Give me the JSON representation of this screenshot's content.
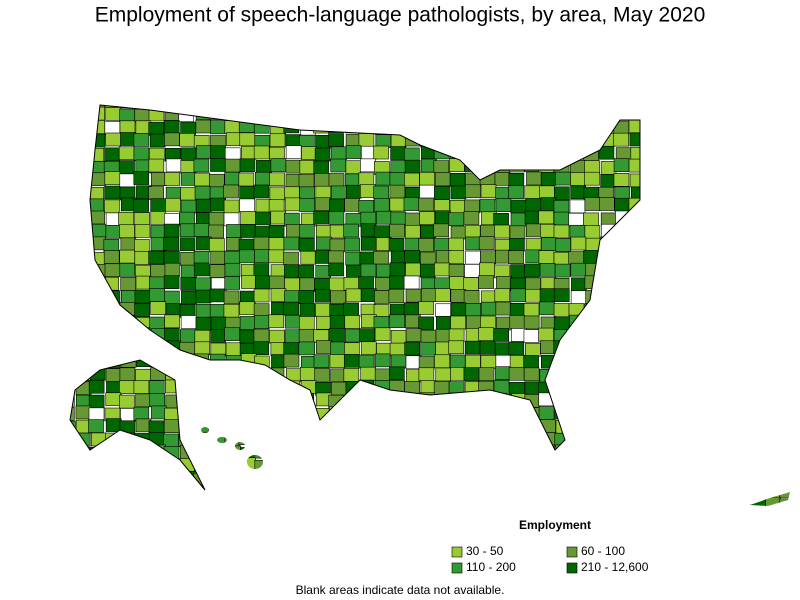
{
  "title": "Employment of speech-language pathologists, by area, May 2020",
  "legend": {
    "title": "Employment",
    "items": [
      {
        "label": "30 - 50",
        "color": "#99cc33"
      },
      {
        "label": "60 - 100",
        "color": "#669933"
      },
      {
        "label": "110 - 200",
        "color": "#339933"
      },
      {
        "label": "210 - 12,600",
        "color": "#006600"
      }
    ]
  },
  "note": "Blank areas indicate data not available."
}
